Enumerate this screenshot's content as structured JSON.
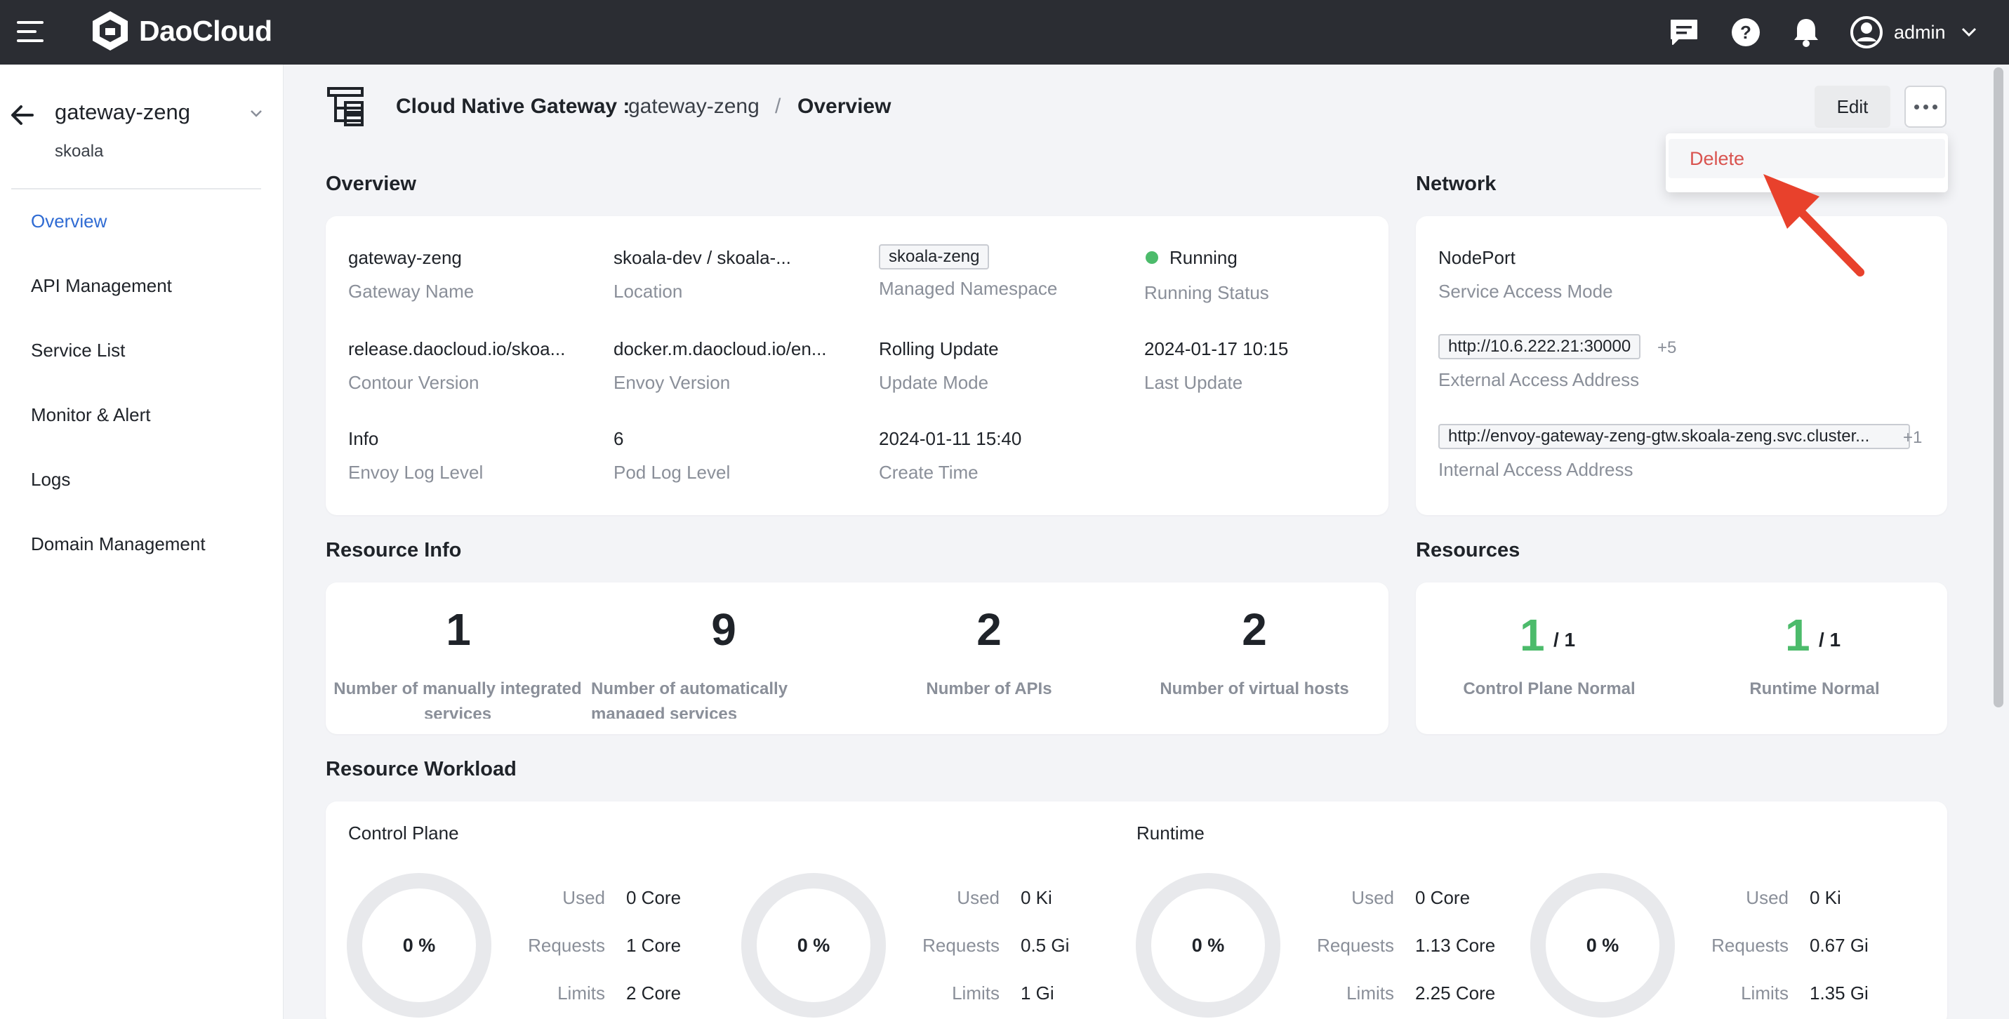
{
  "brand": {
    "name": "DaoCloud"
  },
  "header": {
    "user_name": "admin"
  },
  "sidebar": {
    "title": "gateway-zeng",
    "subtitle": "skoala",
    "items": [
      {
        "label": "Overview"
      },
      {
        "label": "API Management"
      },
      {
        "label": "Service List"
      },
      {
        "label": "Monitor & Alert"
      },
      {
        "label": "Logs"
      },
      {
        "label": "Domain Management"
      }
    ]
  },
  "page": {
    "crumb_section": "Cloud Native Gateway :",
    "crumb_name": "gateway-zeng",
    "crumb_sep": "/",
    "crumb_current": "Overview",
    "edit_label": "Edit",
    "menu_delete_label": "Delete"
  },
  "overview": {
    "title": "Overview",
    "fields": [
      {
        "value": "gateway-zeng",
        "label": "Gateway Name"
      },
      {
        "value": "skoala-dev / skoala-...",
        "label": "Location"
      },
      {
        "value": "skoala-zeng",
        "label": "Managed Namespace"
      },
      {
        "value": "Running",
        "label": "Running Status"
      },
      {
        "value": "release.daocloud.io/skoa...",
        "label": "Contour Version"
      },
      {
        "value": "docker.m.daocloud.io/en...",
        "label": "Envoy Version"
      },
      {
        "value": "Rolling Update",
        "label": "Update Mode"
      },
      {
        "value": "2024-01-17 10:15",
        "label": "Last Update"
      },
      {
        "value": "Info",
        "label": "Envoy Log Level"
      },
      {
        "value": "6",
        "label": "Pod Log Level"
      },
      {
        "value": "2024-01-11 15:40",
        "label": "Create Time"
      }
    ]
  },
  "network": {
    "title": "Network",
    "service_access_mode": {
      "value": "NodePort",
      "label": "Service Access Mode"
    },
    "external_access": {
      "value": "http://10.6.222.21:30000",
      "more": "+5",
      "label": "External Access Address"
    },
    "internal_access": {
      "value": "http://envoy-gateway-zeng-gtw.skoala-zeng.svc.cluster...",
      "more": "+1",
      "label": "Internal Access Address"
    }
  },
  "resource_info": {
    "title": "Resource Info",
    "stats": [
      {
        "value": "1",
        "label": "Number of manually integrated services"
      },
      {
        "value": "9",
        "label": "Number of automatically managed services"
      },
      {
        "value": "2",
        "label": "Number of APIs"
      },
      {
        "value": "2",
        "label": "Number of virtual hosts"
      }
    ]
  },
  "resources": {
    "title": "Resources",
    "items": [
      {
        "normal": "1",
        "total": "/ 1",
        "label": "Control Plane Normal"
      },
      {
        "normal": "1",
        "total": "/ 1",
        "label": "Runtime Normal"
      }
    ]
  },
  "workload": {
    "title": "Resource Workload",
    "labels": {
      "used": "Used",
      "requests": "Requests",
      "limits": "Limits"
    },
    "groups": [
      {
        "name": "Control Plane",
        "cpu": {
          "percent": "0 %",
          "used": "0 Core",
          "requests": "1 Core",
          "limits": "2 Core"
        },
        "mem": {
          "percent": "0 %",
          "used": "0 Ki",
          "requests": "0.5 Gi",
          "limits": "1 Gi"
        }
      },
      {
        "name": "Runtime",
        "cpu": {
          "percent": "0 %",
          "used": "0 Core",
          "requests": "1.13 Core",
          "limits": "2.25 Core"
        },
        "mem": {
          "percent": "0 %",
          "used": "0 Ki",
          "requests": "0.67 Gi",
          "limits": "1.35 Gi"
        }
      }
    ]
  },
  "icons": {
    "menu": "hamburger-icon",
    "logo": "daocloud-logo",
    "message": "message-icon",
    "help": "help-icon",
    "notification": "bell-icon",
    "user": "user-avatar-icon",
    "more": "more-dots-icon"
  },
  "colors": {
    "topbar": "#2b2d33",
    "active_nav": "#2f6bd3",
    "running": "#4cbb6b",
    "delete": "#d9534f",
    "annotation_arrow": "#e8412c"
  }
}
